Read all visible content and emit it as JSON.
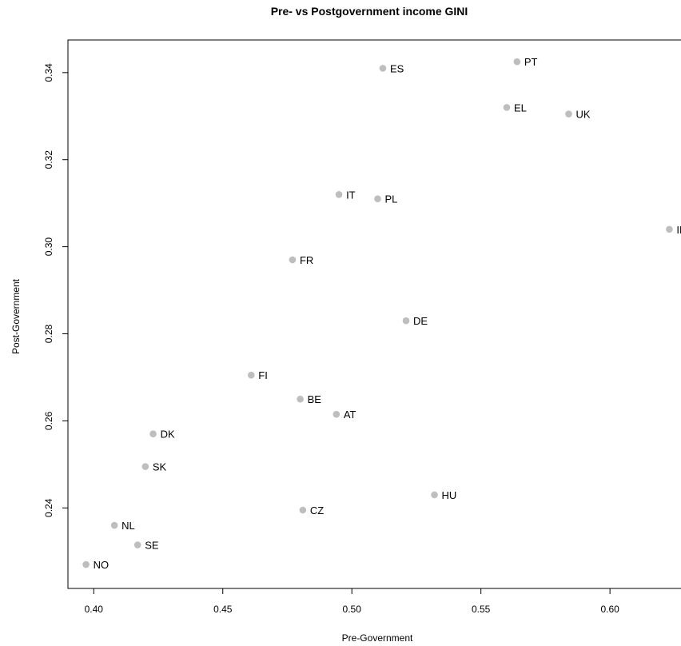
{
  "chart_data": {
    "type": "scatter",
    "title": "Pre- vs Postgovernment income GINI",
    "xlabel": "Pre-Government",
    "ylabel": "Post-Government",
    "xlim": [
      0.39,
      0.63
    ],
    "ylim": [
      0.2215,
      0.3475
    ],
    "x_ticks": [
      0.4,
      0.45,
      0.5,
      0.55,
      0.6
    ],
    "y_ticks": [
      0.24,
      0.26,
      0.28,
      0.3,
      0.32,
      0.34
    ],
    "x_tick_labels": [
      "0.40",
      "0.45",
      "0.50",
      "0.55",
      "0.60"
    ],
    "y_tick_labels": [
      "0.24",
      "0.26",
      "0.28",
      "0.30",
      "0.32",
      "0.34"
    ],
    "grid": false,
    "point_color": "#bebebe",
    "points": [
      {
        "label": "PT",
        "x": 0.564,
        "y": 0.3425
      },
      {
        "label": "ES",
        "x": 0.512,
        "y": 0.341
      },
      {
        "label": "EL",
        "x": 0.56,
        "y": 0.332
      },
      {
        "label": "UK",
        "x": 0.584,
        "y": 0.3305
      },
      {
        "label": "IT",
        "x": 0.495,
        "y": 0.312
      },
      {
        "label": "PL",
        "x": 0.51,
        "y": 0.311
      },
      {
        "label": "IE",
        "x": 0.623,
        "y": 0.304
      },
      {
        "label": "FR",
        "x": 0.477,
        "y": 0.297
      },
      {
        "label": "DE",
        "x": 0.521,
        "y": 0.283
      },
      {
        "label": "FI",
        "x": 0.461,
        "y": 0.2705
      },
      {
        "label": "BE",
        "x": 0.48,
        "y": 0.265
      },
      {
        "label": "AT",
        "x": 0.494,
        "y": 0.2615
      },
      {
        "label": "DK",
        "x": 0.423,
        "y": 0.257
      },
      {
        "label": "SK",
        "x": 0.42,
        "y": 0.2495
      },
      {
        "label": "HU",
        "x": 0.532,
        "y": 0.243
      },
      {
        "label": "CZ",
        "x": 0.481,
        "y": 0.2395
      },
      {
        "label": "NL",
        "x": 0.408,
        "y": 0.236
      },
      {
        "label": "SE",
        "x": 0.417,
        "y": 0.2315
      },
      {
        "label": "NO",
        "x": 0.397,
        "y": 0.227
      }
    ]
  }
}
